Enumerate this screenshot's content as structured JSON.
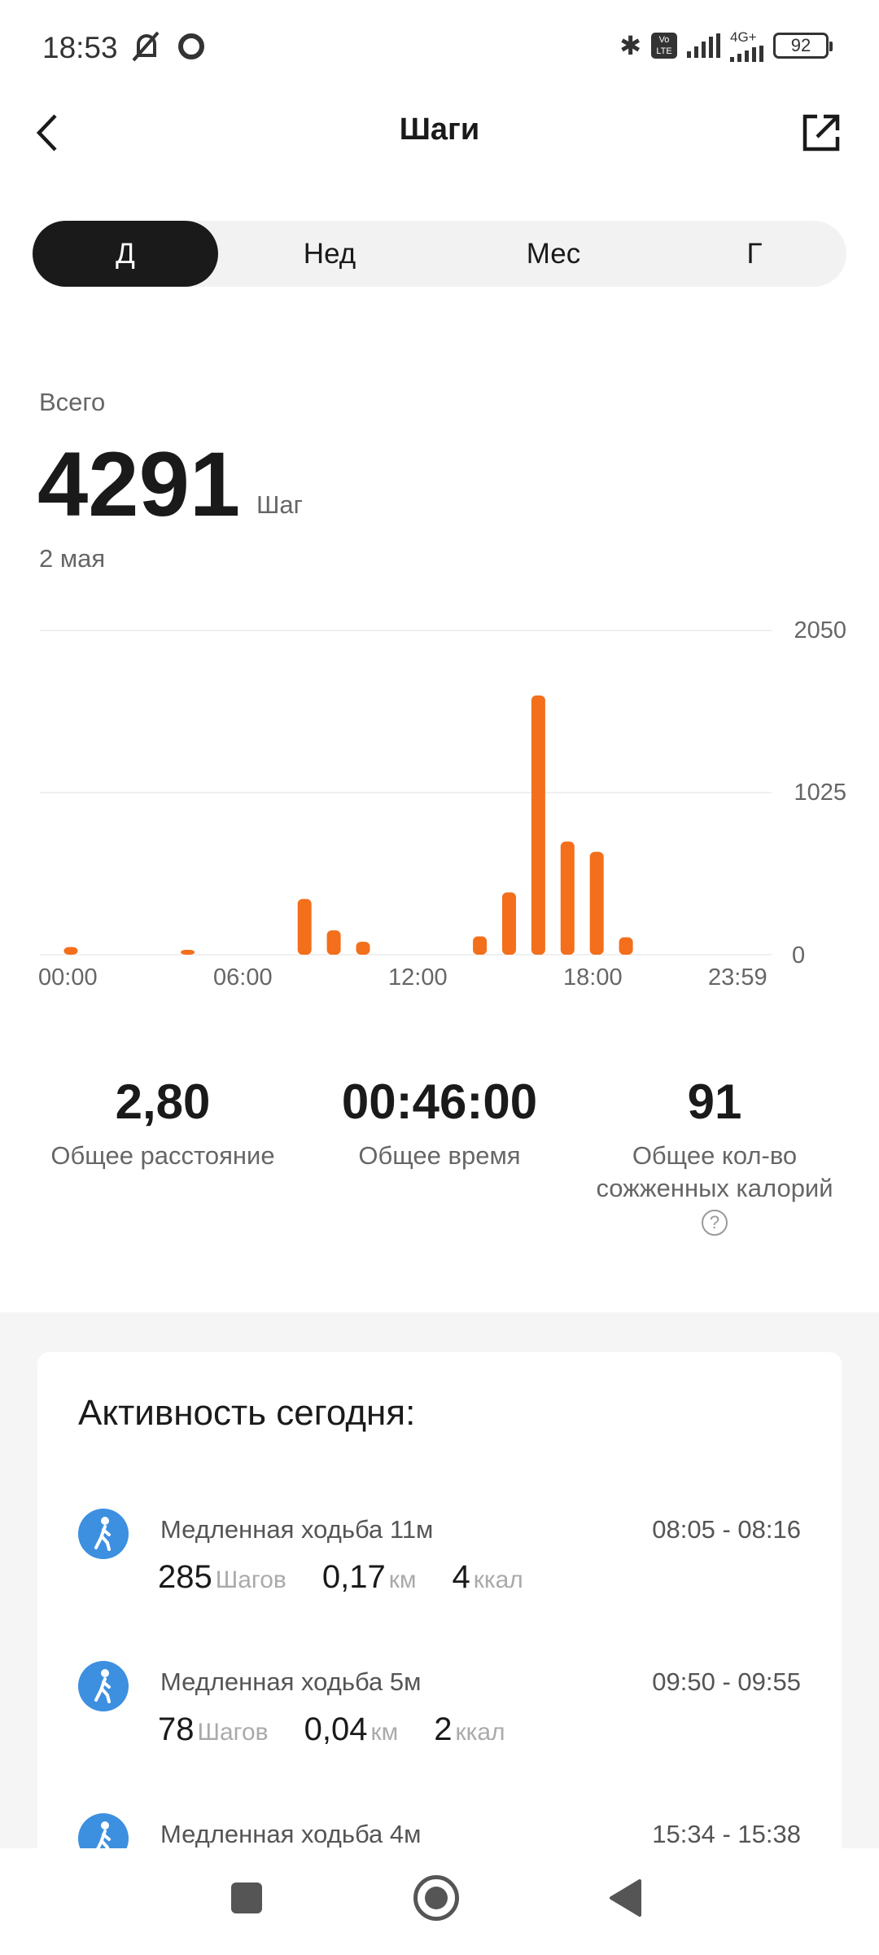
{
  "status_bar": {
    "time": "18:53",
    "network": "4G+",
    "volte": "Vo LTE",
    "battery": "92"
  },
  "header": {
    "title": "Шаги",
    "back_icon": "chevron-left-icon",
    "share_icon": "share-icon"
  },
  "tabs": [
    {
      "label": "Д",
      "selected": true
    },
    {
      "label": "Нед"
    },
    {
      "label": "Мес"
    },
    {
      "label": "Г"
    }
  ],
  "summary": {
    "label": "Всего",
    "value": "4291",
    "unit": "Шаг",
    "date": "2 мая"
  },
  "chart_data": {
    "type": "bar",
    "x": [
      0,
      1,
      2,
      3,
      4,
      5,
      6,
      7,
      8,
      9,
      10,
      11,
      12,
      13,
      14,
      15,
      16,
      17,
      18,
      19,
      20,
      21,
      22,
      23
    ],
    "values": [
      48,
      0,
      0,
      0,
      31,
      0,
      0,
      0,
      352,
      154,
      82,
      0,
      0,
      0,
      116,
      394,
      1639,
      715,
      650,
      110,
      0,
      0,
      0,
      0
    ],
    "x_tick_labels": [
      "00:00",
      "06:00",
      "12:00",
      "18:00",
      "23:59"
    ],
    "y_tick_labels": [
      "2050",
      "1025",
      "0"
    ],
    "ylim": [
      0,
      2050
    ],
    "grid": true,
    "bar_color": "#f36f1b"
  },
  "stats": [
    {
      "value": "2,80",
      "label": "Общее расстояние"
    },
    {
      "value": "00:46:00",
      "label": "Общее время"
    },
    {
      "value": "91",
      "label": "Общее кол-во сожженных калорий"
    }
  ],
  "activity": {
    "title": "Активность сегодня:",
    "items": [
      {
        "name": "Медленная ходьба 11м",
        "time": "08:05 - 08:16",
        "steps": "285",
        "steps_unit": "Шагов",
        "dist": "0,17",
        "dist_unit": "км",
        "kcal": "4",
        "kcal_unit": "ккал"
      },
      {
        "name": "Медленная ходьба 5м",
        "time": "09:50 - 09:55",
        "steps": "78",
        "steps_unit": "Шагов",
        "dist": "0,04",
        "dist_unit": "км",
        "kcal": "2",
        "kcal_unit": "ккал"
      },
      {
        "name": "Медленная ходьба 4м",
        "time": "15:34 - 15:38"
      }
    ]
  },
  "colors": {
    "accent": "#f36f1b",
    "activity_icon": "#3d8fe0"
  }
}
